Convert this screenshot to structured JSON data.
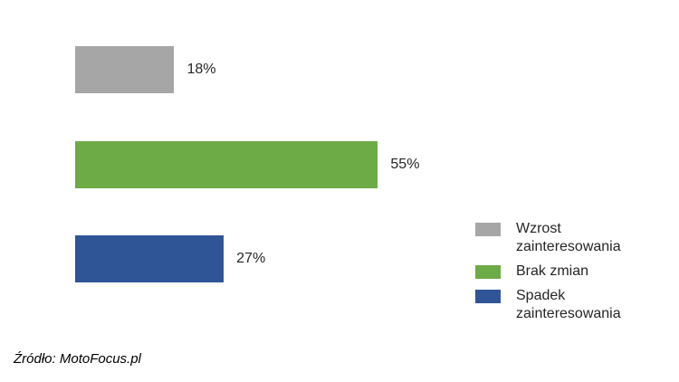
{
  "chart_data": {
    "type": "bar",
    "orientation": "horizontal",
    "categories": [
      "Wzrost zainteresowania",
      "Brak zmian",
      "Spadek zainteresowania"
    ],
    "values": [
      18,
      55,
      27
    ],
    "value_labels": [
      "18%",
      "55%",
      "27%"
    ],
    "bar_colors": [
      "#a6a6a6",
      "#6dab47",
      "#2f5597"
    ],
    "xlim": [
      0,
      100
    ],
    "grid": false,
    "axes_visible": false,
    "legend_position": "right",
    "title": "",
    "xlabel": "",
    "ylabel": ""
  },
  "legend": {
    "items": [
      {
        "label": "Wzrost zainteresowania",
        "color": "#a6a6a6"
      },
      {
        "label": "Brak zmian",
        "color": "#6dab47"
      },
      {
        "label": "Spadek zainteresowania",
        "color": "#2f5597"
      }
    ]
  },
  "source": {
    "text": "Źródło: MotoFocus.pl"
  }
}
